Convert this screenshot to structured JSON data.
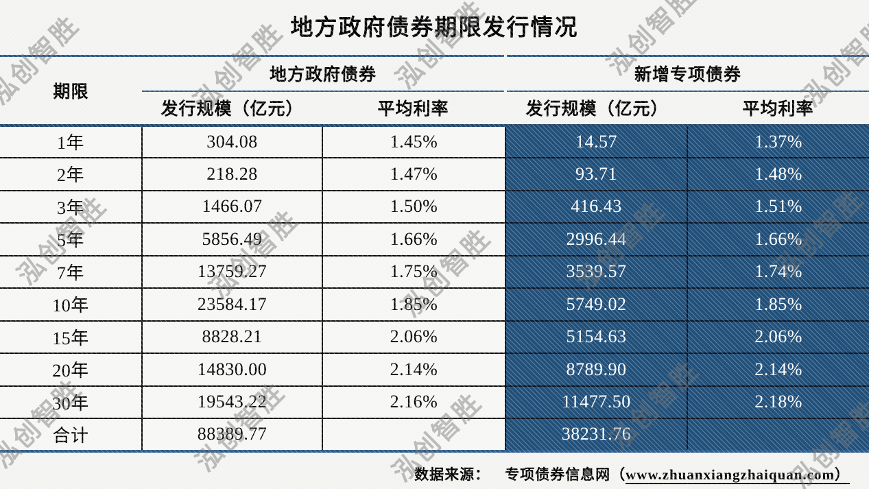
{
  "title": "地方政府债券期限发行情况",
  "watermark": {
    "text": "泓创智胜"
  },
  "table": {
    "term_header": "期限",
    "groups": [
      "地方政府债券",
      "新增专项债券"
    ],
    "sub_headers": [
      "发行规模（亿元）",
      "平均利率",
      "发行规模（亿元）",
      "平均利率"
    ],
    "rows": [
      {
        "term": "1年",
        "lg_scale": "304.08",
        "lg_rate": "1.45%",
        "sp_scale": "14.57",
        "sp_rate": "1.37%"
      },
      {
        "term": "2年",
        "lg_scale": "218.28",
        "lg_rate": "1.47%",
        "sp_scale": "93.71",
        "sp_rate": "1.48%"
      },
      {
        "term": "3年",
        "lg_scale": "1466.07",
        "lg_rate": "1.50%",
        "sp_scale": "416.43",
        "sp_rate": "1.51%"
      },
      {
        "term": "5年",
        "lg_scale": "5856.49",
        "lg_rate": "1.66%",
        "sp_scale": "2996.44",
        "sp_rate": "1.66%"
      },
      {
        "term": "7年",
        "lg_scale": "13759.27",
        "lg_rate": "1.75%",
        "sp_scale": "3539.57",
        "sp_rate": "1.74%"
      },
      {
        "term": "10年",
        "lg_scale": "23584.17",
        "lg_rate": "1.85%",
        "sp_scale": "5749.02",
        "sp_rate": "1.85%"
      },
      {
        "term": "15年",
        "lg_scale": "8828.21",
        "lg_rate": "2.06%",
        "sp_scale": "5154.63",
        "sp_rate": "2.06%"
      },
      {
        "term": "20年",
        "lg_scale": "14830.00",
        "lg_rate": "2.14%",
        "sp_scale": "8789.90",
        "sp_rate": "2.14%"
      },
      {
        "term": "30年",
        "lg_scale": "19543.22",
        "lg_rate": "2.16%",
        "sp_scale": "11477.50",
        "sp_rate": "2.18%"
      },
      {
        "term": "合计",
        "lg_scale": "88389.77",
        "lg_rate": "",
        "sp_scale": "38231.76",
        "sp_rate": ""
      }
    ]
  },
  "footer": {
    "label": "数据来源：",
    "source": "专项债券信息网（",
    "url": "www.zhuanxiangzhaiquan.com",
    "close_paren": "）"
  },
  "colors": {
    "accent_blue": "#21507a",
    "rule_blue": "#2b5c8c",
    "header_rule_dark": "#24496f",
    "row_border_black": "#0d0d0d",
    "text_light": "#ffffff",
    "text_dark": "#000000",
    "watermark_gray": "#767676"
  },
  "chart_data": {
    "type": "table",
    "title": "地方政府债券期限发行情况",
    "column_groups": [
      "期限",
      "地方政府债券",
      "新增专项债券"
    ],
    "columns": [
      "期限",
      "地方政府债券 发行规模（亿元）",
      "地方政府债券 平均利率",
      "新增专项债券 发行规模（亿元）",
      "新增专项债券 平均利率"
    ],
    "rows": [
      [
        "1年",
        304.08,
        "1.45%",
        14.57,
        "1.37%"
      ],
      [
        "2年",
        218.28,
        "1.47%",
        93.71,
        "1.48%"
      ],
      [
        "3年",
        1466.07,
        "1.50%",
        416.43,
        "1.51%"
      ],
      [
        "5年",
        5856.49,
        "1.66%",
        2996.44,
        "1.66%"
      ],
      [
        "7年",
        13759.27,
        "1.75%",
        3539.57,
        "1.74%"
      ],
      [
        "10年",
        23584.17,
        "1.85%",
        5749.02,
        "1.85%"
      ],
      [
        "15年",
        8828.21,
        "2.06%",
        5154.63,
        "2.06%"
      ],
      [
        "20年",
        14830.0,
        "2.14%",
        8789.9,
        "2.14%"
      ],
      [
        "30年",
        19543.22,
        "2.16%",
        11477.5,
        "2.18%"
      ],
      [
        "合计",
        88389.77,
        "",
        38231.76,
        ""
      ]
    ],
    "source_note": "数据来源： 专项债券信息网（www.zhuanxiangzhaiquan.com）"
  }
}
